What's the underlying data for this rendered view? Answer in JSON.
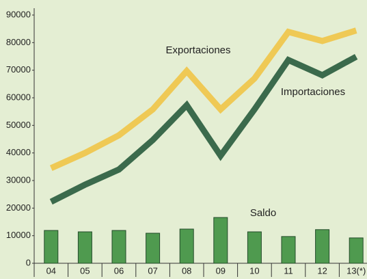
{
  "chart_data": {
    "type": "line",
    "categories": [
      "04",
      "05",
      "06",
      "07",
      "08",
      "09",
      "10",
      "11",
      "12",
      "13(*)"
    ],
    "series": [
      {
        "name": "Exportaciones",
        "type": "line",
        "color": "#efc955",
        "values": [
          34500,
          40000,
          46400,
          55800,
          69700,
          55800,
          67000,
          83900,
          80600,
          84400
        ]
      },
      {
        "name": "Importaciones",
        "type": "line",
        "color": "#3b6a4c",
        "values": [
          22300,
          28500,
          34000,
          44700,
          57300,
          39000,
          55800,
          73700,
          68200,
          74900
        ]
      },
      {
        "name": "Saldo",
        "type": "bar",
        "color": "#4f9a4f",
        "values": [
          11900,
          11400,
          11900,
          10900,
          12400,
          16600,
          11400,
          9700,
          12200,
          9200
        ]
      }
    ],
    "ylim": [
      0,
      90000
    ],
    "yticks": [
      0,
      10000,
      20000,
      30000,
      40000,
      50000,
      60000,
      70000,
      80000,
      90000
    ],
    "grid": false
  }
}
